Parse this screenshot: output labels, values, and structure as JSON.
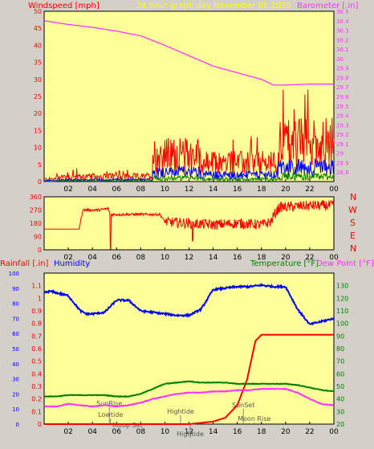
{
  "header": {
    "left": "Windspeed [mph]",
    "center": "24 hour graph day   November 01 2020",
    "right": "Barometer [.in]"
  },
  "direction_labels": [
    "N",
    "W",
    "S",
    "E",
    "N"
  ],
  "bottom_header": {
    "rainfall": "Rainfall [.in]",
    "humidity": "Humidity",
    "temperature": "Temperature [°F]",
    "dewpoint": "Dew Point [°F]"
  },
  "colors": {
    "plot_bg": "#ffff99",
    "frame_bg": "#d4d0c8",
    "wind_gust": "#ff0000",
    "wind_avg": "#0000ff",
    "wind_low": "#008000",
    "barometer": "#ff33ff",
    "direction": "#ff0000",
    "humidity": "#0000ff",
    "rain": "#ff0000",
    "temperature": "#008000",
    "dewpoint": "#ff33ff",
    "tide_lines": "#808080",
    "title": "#ffff00",
    "axis_red": "#ff0000"
  },
  "chart_data": [
    {
      "type": "line",
      "name": "wind-barometer",
      "x_ticks": [
        "02",
        "04",
        "06",
        "08",
        "10",
        "12",
        "14",
        "16",
        "18",
        "20",
        "22",
        "00"
      ],
      "left_axis": {
        "label": "Windspeed [mph]",
        "range": [
          0,
          50
        ],
        "ticks": [
          "0",
          "5",
          "10",
          "15",
          "20",
          "25",
          "30",
          "35",
          "40",
          "45",
          "50"
        ]
      },
      "right_axis": {
        "label": "Barometer [.in]",
        "range": [
          28.7,
          30.5
        ],
        "ticks": [
          "28.8",
          "28.9",
          "29",
          "29.1",
          "29.2",
          "29.3",
          "29.4",
          "29.5",
          "29.6",
          "29.7",
          "29.8",
          "29.9",
          "30",
          "30.1",
          "30.2",
          "30.3",
          "30.4",
          "30.5"
        ]
      },
      "barometer": {
        "x": [
          0,
          2,
          4,
          6,
          8,
          10,
          12,
          14,
          16,
          18,
          19,
          20,
          22,
          24
        ],
        "y": [
          30.4,
          30.36,
          30.33,
          30.29,
          30.24,
          30.14,
          30.03,
          29.92,
          29.85,
          29.78,
          29.72,
          29.72,
          29.73,
          29.73
        ]
      }
    },
    {
      "type": "line",
      "name": "wind-direction",
      "x_ticks": [
        "02",
        "04",
        "06",
        "08",
        "10",
        "12",
        "14",
        "16",
        "18",
        "20",
        "22",
        "00"
      ],
      "y_axis": {
        "range": [
          0,
          360
        ],
        "ticks": [
          "0",
          "90",
          "180",
          "270",
          "360"
        ]
      },
      "direction": {
        "x": [
          0,
          2.9,
          3.2,
          4.5,
          5.3,
          5.5,
          6,
          8,
          9.6,
          10,
          12,
          14,
          16,
          18,
          18.8,
          19,
          19.5,
          20,
          22,
          24
        ],
        "y": [
          140,
          140,
          270,
          270,
          280,
          240,
          240,
          240,
          240,
          190,
          180,
          170,
          180,
          170,
          190,
          230,
          290,
          290,
          300,
          300
        ]
      }
    },
    {
      "type": "line",
      "name": "rain-humidity-temperature",
      "x_ticks": [
        "02",
        "04",
        "06",
        "08",
        "10",
        "12",
        "14",
        "16",
        "18",
        "20",
        "22",
        "00"
      ],
      "left_axis_rain": {
        "label": "Rainfall [.in]",
        "range": [
          0,
          1.2
        ],
        "ticks": [
          "0",
          "0.1",
          "0.2",
          "0.3",
          "0.4",
          "0.5",
          "0.6",
          "0.7",
          "0.8",
          "0.9",
          "1",
          "1.1"
        ]
      },
      "left_axis_humidity": {
        "label": "Humidity",
        "range": [
          0,
          100
        ],
        "ticks": [
          "0",
          "10",
          "20",
          "30",
          "40",
          "50",
          "60",
          "70",
          "80",
          "90",
          "100"
        ]
      },
      "right_axis": {
        "label": "Temperature [°F]",
        "range": [
          20,
          140
        ],
        "ticks": [
          "20",
          "30",
          "40",
          "50",
          "60",
          "70",
          "80",
          "90",
          "100",
          "110",
          "120",
          "130"
        ]
      },
      "humidity": {
        "x": [
          0,
          0.5,
          1,
          2,
          3,
          3.5,
          4,
          5,
          6,
          7,
          8,
          9,
          10,
          11,
          12,
          13,
          14,
          15,
          16,
          17,
          18,
          19,
          20,
          21,
          22,
          23,
          24
        ],
        "y": [
          87,
          88,
          87,
          85,
          75,
          73,
          73,
          74,
          82,
          82,
          75,
          74,
          73,
          72,
          72,
          76,
          89,
          90,
          91,
          91,
          92,
          91,
          91,
          76,
          66,
          68,
          70
        ]
      },
      "rain": {
        "x": [
          0,
          12,
          13,
          14,
          15,
          16,
          16.8,
          17.5,
          18,
          20,
          22,
          24
        ],
        "y": [
          0,
          0,
          0.01,
          0.02,
          0.05,
          0.15,
          0.35,
          0.66,
          0.71,
          0.71,
          0.71,
          0.71
        ]
      },
      "temperature": {
        "x": [
          0,
          1,
          2,
          3,
          4,
          5,
          6,
          7,
          8,
          9,
          10,
          11,
          12,
          13,
          14,
          15,
          16,
          17,
          18,
          19,
          20,
          21,
          22,
          23,
          24
        ],
        "y": [
          42,
          42,
          43,
          43,
          43,
          43,
          42,
          42,
          44,
          48,
          52,
          53,
          54,
          53,
          53,
          53,
          52,
          52,
          52,
          52,
          52,
          51,
          49,
          47,
          46
        ]
      },
      "dewpoint": {
        "x": [
          0,
          1,
          2,
          3,
          4,
          5,
          6,
          7,
          8,
          9,
          10,
          11,
          12,
          13,
          14,
          15,
          16,
          17,
          18,
          19,
          20,
          21,
          22,
          23,
          24
        ],
        "y": [
          34,
          34,
          36,
          35,
          34,
          35,
          34,
          35,
          37,
          40,
          42,
          44,
          45,
          45,
          46,
          46,
          47,
          47,
          48,
          48,
          48,
          45,
          40,
          36,
          35
        ]
      },
      "annotations": [
        {
          "label": "SunRise",
          "x": 5.4
        },
        {
          "label": "Lowtide",
          "x": 5.5
        },
        {
          "label": "Moon Set",
          "x": 6.9
        },
        {
          "label": "Hightide",
          "x": 11.3
        },
        {
          "label": "Hightide",
          "x": 12.1
        },
        {
          "label": "SunSet",
          "x": 16.5
        },
        {
          "label": "Moon Rise",
          "x": 17.4
        }
      ]
    }
  ]
}
